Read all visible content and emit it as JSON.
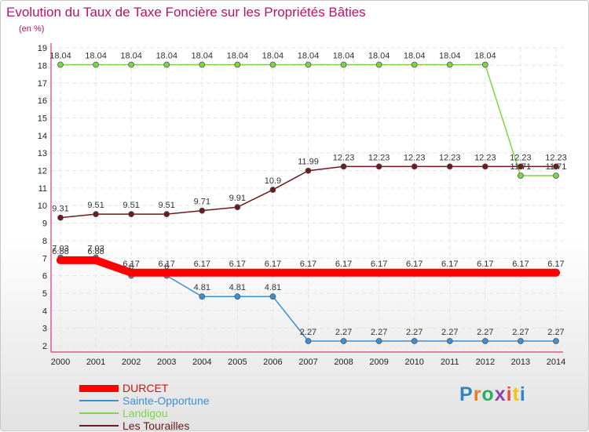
{
  "chart_data": {
    "type": "line",
    "title": "Evolution du Taux de Taxe Foncière sur les Propriétés Bâties",
    "ylabel": "(en %)",
    "xlabel": "",
    "categories": [
      "2000",
      "2001",
      "2002",
      "2003",
      "2004",
      "2005",
      "2006",
      "2007",
      "2008",
      "2009",
      "2010",
      "2011",
      "2012",
      "2013",
      "2014"
    ],
    "ylim": [
      2,
      19
    ],
    "yticks": [
      2,
      3,
      4,
      5,
      6,
      7,
      8,
      9,
      10,
      11,
      12,
      13,
      14,
      15,
      16,
      17,
      18,
      19
    ],
    "grid": true,
    "legend_position": "bottom-left",
    "series": [
      {
        "name": "DURCET",
        "color": "#ff0000",
        "values": [
          6.88,
          6.88,
          6.17,
          6.17,
          6.17,
          6.17,
          6.17,
          6.17,
          6.17,
          6.17,
          6.17,
          6.17,
          6.17,
          6.17,
          6.17
        ],
        "labels": [
          "6.88",
          "6.88",
          "6.17",
          "6.17",
          "6.17",
          "6.17",
          "6.17",
          "6.17",
          "6.17",
          "6.17",
          "6.17",
          "6.17",
          "6.17",
          "6.17",
          "6.17"
        ]
      },
      {
        "name": "Sainte-Opportune",
        "color": "#3d8fd1",
        "values": [
          7.03,
          7.03,
          6,
          6,
          4.81,
          4.81,
          4.81,
          2.27,
          2.27,
          2.27,
          2.27,
          2.27,
          2.27,
          2.27,
          2.27
        ],
        "labels": [
          "7.03",
          "7.03",
          "6",
          "6",
          "4.81",
          "4.81",
          "4.81",
          "2.27",
          "2.27",
          "2.27",
          "2.27",
          "2.27",
          "2.27",
          "2.27",
          "2.27"
        ]
      },
      {
        "name": "Landigou",
        "color": "#7dd44a",
        "values": [
          18.04,
          18.04,
          18.04,
          18.04,
          18.04,
          18.04,
          18.04,
          18.04,
          18.04,
          18.04,
          18.04,
          18.04,
          18.04,
          11.71,
          11.71
        ],
        "labels": [
          "18.04",
          "18.04",
          "18.04",
          "18.04",
          "18.04",
          "18.04",
          "18.04",
          "18.04",
          "18.04",
          "18.04",
          "18.04",
          "18.04",
          "18.04",
          "11.71",
          "11.71"
        ]
      },
      {
        "name": "Les Tourailles",
        "color": "#6b1a1d",
        "values": [
          9.31,
          9.51,
          9.51,
          9.51,
          9.71,
          9.91,
          10.9,
          11.99,
          12.23,
          12.23,
          12.23,
          12.23,
          12.23,
          12.23,
          12.23
        ],
        "labels": [
          "9.31",
          "9.51",
          "9.51",
          "9.51",
          "9.71",
          "9.91",
          "10.9",
          "11.99",
          "12.23",
          "12.23",
          "12.23",
          "12.23",
          "12.23",
          "12.23",
          "12.23"
        ]
      }
    ]
  },
  "logo": {
    "text": "Proxiti",
    "colors": [
      "#2e86c1",
      "#e67e22",
      "#27ae60",
      "#8e44ad",
      "#e74c3c",
      "#f1c40f",
      "#2e86c1"
    ]
  }
}
